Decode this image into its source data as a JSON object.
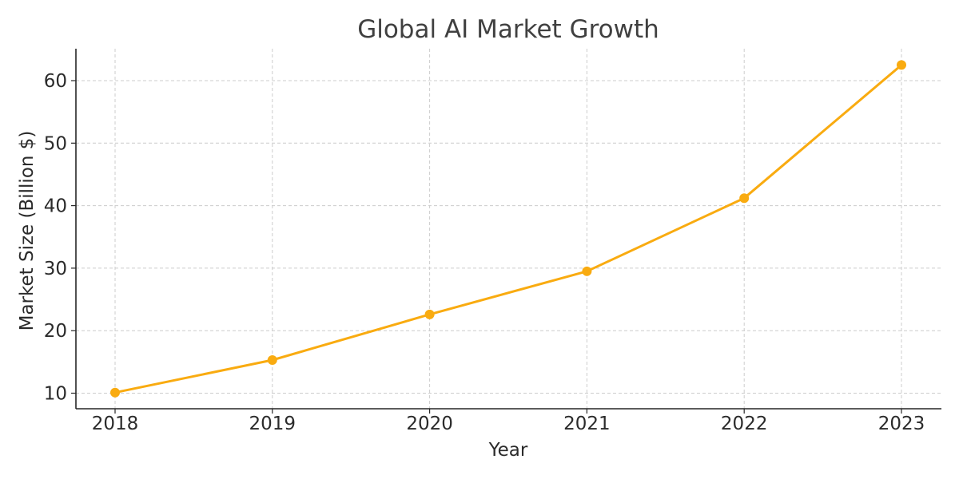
{
  "chart_data": {
    "type": "line",
    "title": "Global AI Market Growth",
    "xlabel": "Year",
    "ylabel": "Market Size (Billion $)",
    "x": [
      "2018",
      "2019",
      "2020",
      "2021",
      "2022",
      "2023"
    ],
    "series": [
      {
        "values": [
          10.1,
          15.3,
          22.6,
          29.5,
          41.2,
          62.5
        ],
        "color": "#f9ab10",
        "marker": "circle"
      }
    ],
    "yticks": [
      10,
      20,
      30,
      40,
      50,
      60
    ],
    "ylim": [
      7.5,
      65
    ],
    "grid": true,
    "grid_style": "dashed",
    "legend": "none"
  }
}
